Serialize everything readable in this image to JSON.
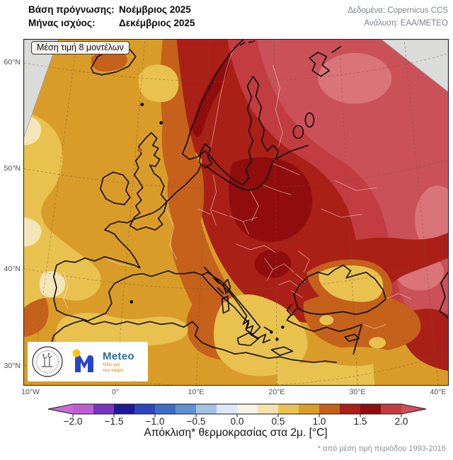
{
  "header": {
    "line1_label": "Βάση πρόγνωσης:",
    "line1_value": "Νοέμβριος 2025",
    "line2_label": "Μήνας ισχύος:",
    "line2_value": "Δεκέμβριος 2025",
    "right_line1": "Δεδομένα: Copernicus CCS",
    "right_line2": "Ανάλυση: ΕΑΑ/ΜΕΤΕΟ"
  },
  "map": {
    "badge": "Μέση τιμή 8 μοντέλων",
    "lat_labels": [
      "60°N",
      "50°N",
      "40°N",
      "30°N"
    ],
    "lon_labels": [
      "10°W",
      "0°",
      "10°E",
      "20°E",
      "30°E",
      "40°E"
    ]
  },
  "legend": {
    "ticks": [
      "−2.0",
      "−1.5",
      "−1.0",
      "−0.5",
      "0.0",
      "0.5",
      "1.0",
      "1.5",
      "2.0"
    ],
    "caption": "Απόκλιση* θερμοκρασίας στα 2μ. [°C]",
    "footnote": "* από μέση τιμή περιόδου 1993-2016",
    "unit": "°C",
    "value_min": -2.0,
    "value_max": 2.0,
    "segment_step": 0.25,
    "segment_colors": [
      "#BE5ED6",
      "#7A33BE",
      "#1D1799",
      "#2C46BE",
      "#3E6DC8",
      "#5C93D2",
      "#A2C3E3",
      "#DCE8F5",
      "#F8F3E4",
      "#F3E3AE",
      "#E9C351",
      "#DC9E28",
      "#C5611B",
      "#AA2017",
      "#910D0D",
      "#C33C41"
    ],
    "extend_left_color": "#C96BD9",
    "extend_right_color": "#CC5157"
  },
  "palette": {
    "base_orange": "#D99C28",
    "gold": "#E8C14F",
    "pale_yellow": "#F4E6B8",
    "dark_orange": "#C5611B",
    "dark_red": "#AA2017",
    "deep_red": "#910D0D",
    "medium_red": "#C33C41",
    "pink_red": "#CB5158",
    "light_pink": "#D97478",
    "no_data_grey": "#DBDBD9"
  },
  "logo": {
    "brand": "Meteo",
    "tagline_line1": "Όλα για",
    "tagline_line2": "τον καιρό"
  }
}
